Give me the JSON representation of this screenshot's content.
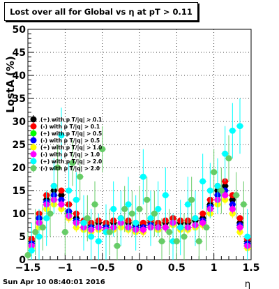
{
  "title": "Lost over all for Global vs   η at pT > 0.11",
  "footer": "Sun Apr 10 08:40:01 2016",
  "chart_data": {
    "type": "scatter",
    "xlabel": "η",
    "ylabel": "LostA (%)",
    "xlim": [
      -1.5,
      1.5
    ],
    "ylim": [
      0,
      50
    ],
    "xticks": [
      "−1.5",
      "−1",
      "−0.5",
      "0",
      "0.5",
      "1",
      "1.5"
    ],
    "yticks": [
      "0",
      "5",
      "10",
      "15",
      "20",
      "25",
      "30",
      "35",
      "40",
      "45",
      "50"
    ],
    "grid": true,
    "legend_position": "middle-left",
    "series": [
      {
        "name": "(+) with p T/|q| > 0.1",
        "color": "#000000",
        "err": 0.6,
        "x": [
          -1.45,
          -1.35,
          -1.25,
          -1.15,
          -1.05,
          -0.95,
          -0.85,
          -0.75,
          -0.65,
          -0.55,
          -0.45,
          -0.35,
          -0.25,
          -0.15,
          -0.05,
          0.05,
          0.15,
          0.25,
          0.35,
          0.45,
          0.55,
          0.65,
          0.75,
          0.85,
          0.95,
          1.05,
          1.15,
          1.25,
          1.35,
          1.45
        ],
        "y": [
          4,
          9,
          13,
          15,
          14,
          12,
          9,
          8,
          7.5,
          8,
          7.5,
          8,
          9,
          8,
          7.5,
          7.5,
          8,
          7.5,
          8,
          9,
          8,
          8,
          8.5,
          9,
          12,
          15,
          16,
          13,
          8,
          4
        ]
      },
      {
        "name": "(-) with p T/|q| > 0.1",
        "color": "#ff0000",
        "err": 0.6,
        "x": [
          -1.45,
          -1.35,
          -1.25,
          -1.15,
          -1.05,
          -0.95,
          -0.85,
          -0.75,
          -0.65,
          -0.55,
          -0.45,
          -0.35,
          -0.25,
          -0.15,
          -0.05,
          0.05,
          0.15,
          0.25,
          0.35,
          0.45,
          0.55,
          0.65,
          0.75,
          0.85,
          0.95,
          1.05,
          1.15,
          1.25,
          1.35,
          1.45
        ],
        "y": [
          4.5,
          10,
          14,
          16,
          15,
          12,
          10,
          8.5,
          8,
          8.5,
          8,
          8.5,
          9,
          8.5,
          8,
          8,
          8.5,
          8,
          8.5,
          9,
          8.5,
          8.5,
          9,
          10,
          13,
          16,
          17,
          14,
          9,
          4.5
        ]
      },
      {
        "name": "(+) with p T/|q| > 0.5",
        "color": "#00ff00",
        "err": 0.7,
        "x": [
          -1.45,
          -1.35,
          -1.25,
          -1.15,
          -1.05,
          -0.95,
          -0.85,
          -0.75,
          -0.65,
          -0.55,
          -0.45,
          -0.35,
          -0.25,
          -0.15,
          -0.05,
          0.05,
          0.15,
          0.25,
          0.35,
          0.45,
          0.55,
          0.65,
          0.75,
          0.85,
          0.95,
          1.05,
          1.15,
          1.25,
          1.35,
          1.45
        ],
        "y": [
          3,
          8,
          12,
          13,
          12,
          10,
          8,
          7,
          6.5,
          7,
          6.5,
          7,
          8,
          7,
          6.5,
          6.5,
          7,
          6.5,
          7,
          8,
          7,
          7,
          7,
          8,
          11,
          13,
          14,
          11,
          7,
          3
        ]
      },
      {
        "name": "(-) with p T/|q| > 0.5",
        "color": "#0000ff",
        "err": 0.7,
        "x": [
          -1.45,
          -1.35,
          -1.25,
          -1.15,
          -1.05,
          -0.95,
          -0.85,
          -0.75,
          -0.65,
          -0.55,
          -0.45,
          -0.35,
          -0.25,
          -0.15,
          -0.05,
          0.05,
          0.15,
          0.25,
          0.35,
          0.45,
          0.55,
          0.65,
          0.75,
          0.85,
          0.95,
          1.05,
          1.15,
          1.25,
          1.35,
          1.45
        ],
        "y": [
          3.5,
          9,
          12.5,
          14,
          13,
          10.5,
          8.5,
          7,
          7,
          7,
          7,
          7,
          8,
          7,
          7,
          7,
          7.5,
          7,
          7,
          8,
          7,
          7,
          7.5,
          8.5,
          11.5,
          14,
          15,
          12,
          7.5,
          3.5
        ]
      },
      {
        "name": "(+) with p T/|q| > 1.0",
        "color": "#ffff00",
        "err": 1.0,
        "x": [
          -1.45,
          -1.35,
          -1.25,
          -1.15,
          -1.05,
          -0.95,
          -0.85,
          -0.75,
          -0.65,
          -0.55,
          -0.45,
          -0.35,
          -0.25,
          -0.15,
          -0.05,
          0.05,
          0.15,
          0.25,
          0.35,
          0.45,
          0.55,
          0.65,
          0.75,
          0.85,
          0.95,
          1.05,
          1.15,
          1.25,
          1.35,
          1.45
        ],
        "y": [
          2.5,
          7,
          11,
          12,
          11,
          9,
          7,
          6.5,
          6,
          6.5,
          6,
          6.5,
          7,
          6.5,
          6,
          6,
          7,
          6.5,
          7,
          7.5,
          6.5,
          6.5,
          7,
          7.5,
          10,
          12,
          13,
          10,
          6,
          2.5
        ]
      },
      {
        "name": "(-) with p T/|q| > 1.0",
        "color": "#ff00ff",
        "err": 1.0,
        "x": [
          -1.45,
          -1.35,
          -1.25,
          -1.15,
          -1.05,
          -0.95,
          -0.85,
          -0.75,
          -0.65,
          -0.55,
          -0.45,
          -0.35,
          -0.25,
          -0.15,
          -0.05,
          0.05,
          0.15,
          0.25,
          0.35,
          0.45,
          0.55,
          0.65,
          0.75,
          0.85,
          0.95,
          1.05,
          1.15,
          1.25,
          1.35,
          1.45
        ],
        "y": [
          3,
          8,
          12,
          13,
          12,
          9.5,
          8,
          7,
          6.5,
          7,
          6.5,
          7,
          8,
          7,
          6.5,
          6.5,
          7,
          7,
          7,
          8,
          7,
          7,
          7.5,
          8,
          11,
          13,
          14,
          11,
          7,
          3
        ]
      },
      {
        "name": "(+) with p T/|q| > 2.0",
        "color": "#00ffff",
        "err": 6.0,
        "x": [
          -1.45,
          -1.35,
          -1.25,
          -1.15,
          -1.05,
          -0.95,
          -0.85,
          -0.75,
          -0.65,
          -0.55,
          -0.45,
          -0.35,
          -0.25,
          -0.15,
          -0.05,
          0.05,
          0.15,
          0.25,
          0.35,
          0.45,
          0.55,
          0.65,
          0.75,
          0.85,
          0.95,
          1.05,
          1.15,
          1.25,
          1.35,
          1.45
        ],
        "y": [
          2,
          5,
          9,
          16,
          27,
          15,
          13,
          8,
          5,
          4,
          6,
          11,
          9,
          12,
          8,
          18,
          9,
          11,
          14,
          4,
          7,
          12,
          9,
          17,
          15,
          16,
          23,
          28,
          29,
          5
        ]
      },
      {
        "name": "(-) with p T/|q| > 2.0",
        "color": "#66cc66",
        "err": 5.0,
        "x": [
          -1.5,
          -1.4,
          -1.3,
          -1.2,
          -1.1,
          -1.0,
          -0.9,
          -0.8,
          -0.7,
          -0.6,
          -0.5,
          -0.4,
          -0.3,
          -0.2,
          -0.1,
          0.0,
          0.1,
          0.2,
          0.3,
          0.4,
          0.5,
          0.6,
          0.7,
          0.8,
          0.9,
          1.0,
          1.1,
          1.2,
          1.3,
          1.4
        ],
        "y": [
          1,
          6,
          7,
          10,
          20,
          6,
          21,
          18,
          9,
          12,
          24,
          6,
          3,
          11,
          10,
          11,
          13,
          10,
          4,
          6,
          4,
          5,
          13,
          4,
          7,
          19,
          15,
          22,
          14,
          12
        ]
      }
    ]
  }
}
